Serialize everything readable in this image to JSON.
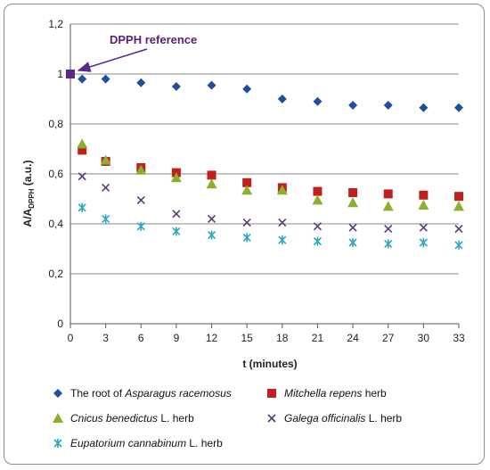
{
  "chart_data": {
    "type": "scatter",
    "title": "",
    "xlabel": "t (minutes)",
    "ylabel_main": "A/A",
    "ylabel_sub": "DPPH",
    "ylabel_unit": " (a.u.)",
    "xlim": [
      0,
      33
    ],
    "ylim": [
      0,
      1.2
    ],
    "x_ticks": [
      "0",
      "3",
      "6",
      "9",
      "12",
      "15",
      "18",
      "21",
      "24",
      "27",
      "30",
      "33"
    ],
    "y_ticks": [
      "0",
      "0,2",
      "0,4",
      "0,6",
      "0,8",
      "1",
      "1,2"
    ],
    "grid": true,
    "legend_position": "bottom",
    "reference": {
      "label": "DPPH reference",
      "x": 0,
      "y": 1.0,
      "color": "#5b2a86"
    },
    "series": [
      {
        "name_parts": [
          "The root of ",
          "Asparagus racemosus",
          ""
        ],
        "marker": "diamond",
        "color": "#1f4e9c",
        "x": [
          1,
          3,
          6,
          9,
          12,
          15,
          18,
          21,
          24,
          27,
          30,
          33
        ],
        "y": [
          0.98,
          0.98,
          0.965,
          0.95,
          0.955,
          0.94,
          0.9,
          0.89,
          0.875,
          0.875,
          0.865,
          0.865
        ]
      },
      {
        "name_parts": [
          "",
          "Mitchella repens",
          " herb"
        ],
        "marker": "square",
        "color": "#c0201e",
        "x": [
          1,
          3,
          6,
          9,
          12,
          15,
          18,
          21,
          24,
          27,
          30,
          33
        ],
        "y": [
          0.695,
          0.65,
          0.625,
          0.605,
          0.595,
          0.565,
          0.545,
          0.53,
          0.525,
          0.52,
          0.515,
          0.51
        ]
      },
      {
        "name_parts": [
          "",
          "Cnicus benedictus",
          " L. herb"
        ],
        "marker": "triangle",
        "color": "#8ab02e",
        "x": [
          1,
          3,
          6,
          9,
          12,
          15,
          18,
          21,
          24,
          27,
          30,
          33
        ],
        "y": [
          0.72,
          0.655,
          0.615,
          0.585,
          0.56,
          0.535,
          0.535,
          0.495,
          0.485,
          0.47,
          0.475,
          0.47
        ]
      },
      {
        "name_parts": [
          "",
          "Galega officinalis",
          " L. herb"
        ],
        "marker": "x",
        "color": "#5a3a7a",
        "x": [
          1,
          3,
          6,
          9,
          12,
          15,
          18,
          21,
          24,
          27,
          30,
          33
        ],
        "y": [
          0.59,
          0.545,
          0.495,
          0.44,
          0.42,
          0.405,
          0.405,
          0.39,
          0.385,
          0.38,
          0.385,
          0.38
        ]
      },
      {
        "name_parts": [
          "",
          "Eupatorium cannabinum",
          " L. herb"
        ],
        "marker": "star",
        "color": "#2aa7c0",
        "x": [
          1,
          3,
          6,
          9,
          12,
          15,
          18,
          21,
          24,
          27,
          30,
          33
        ],
        "y": [
          0.465,
          0.42,
          0.39,
          0.37,
          0.355,
          0.345,
          0.335,
          0.33,
          0.325,
          0.32,
          0.325,
          0.315
        ]
      }
    ]
  }
}
